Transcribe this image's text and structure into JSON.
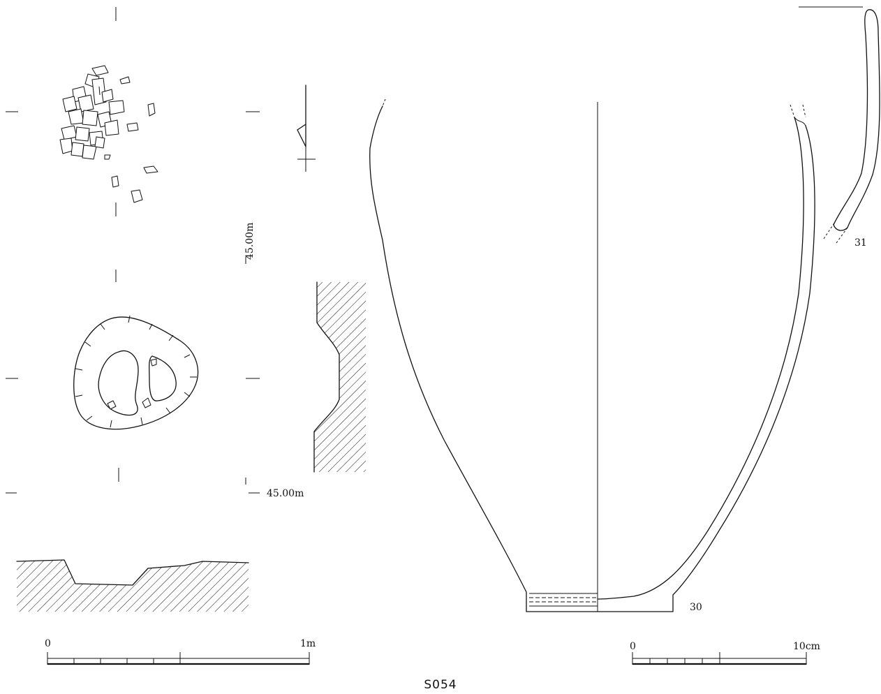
{
  "figure_title": "S054",
  "feature_plan": {
    "elevation_label_upper": "45.00m",
    "elevation_label_lower": "45.00m"
  },
  "scales": {
    "feature_scale": {
      "start": "0",
      "end": "1m"
    },
    "artifact_scale": {
      "start": "0",
      "end": "10cm"
    }
  },
  "artifacts": [
    {
      "number": "30"
    },
    {
      "number": "31"
    }
  ]
}
